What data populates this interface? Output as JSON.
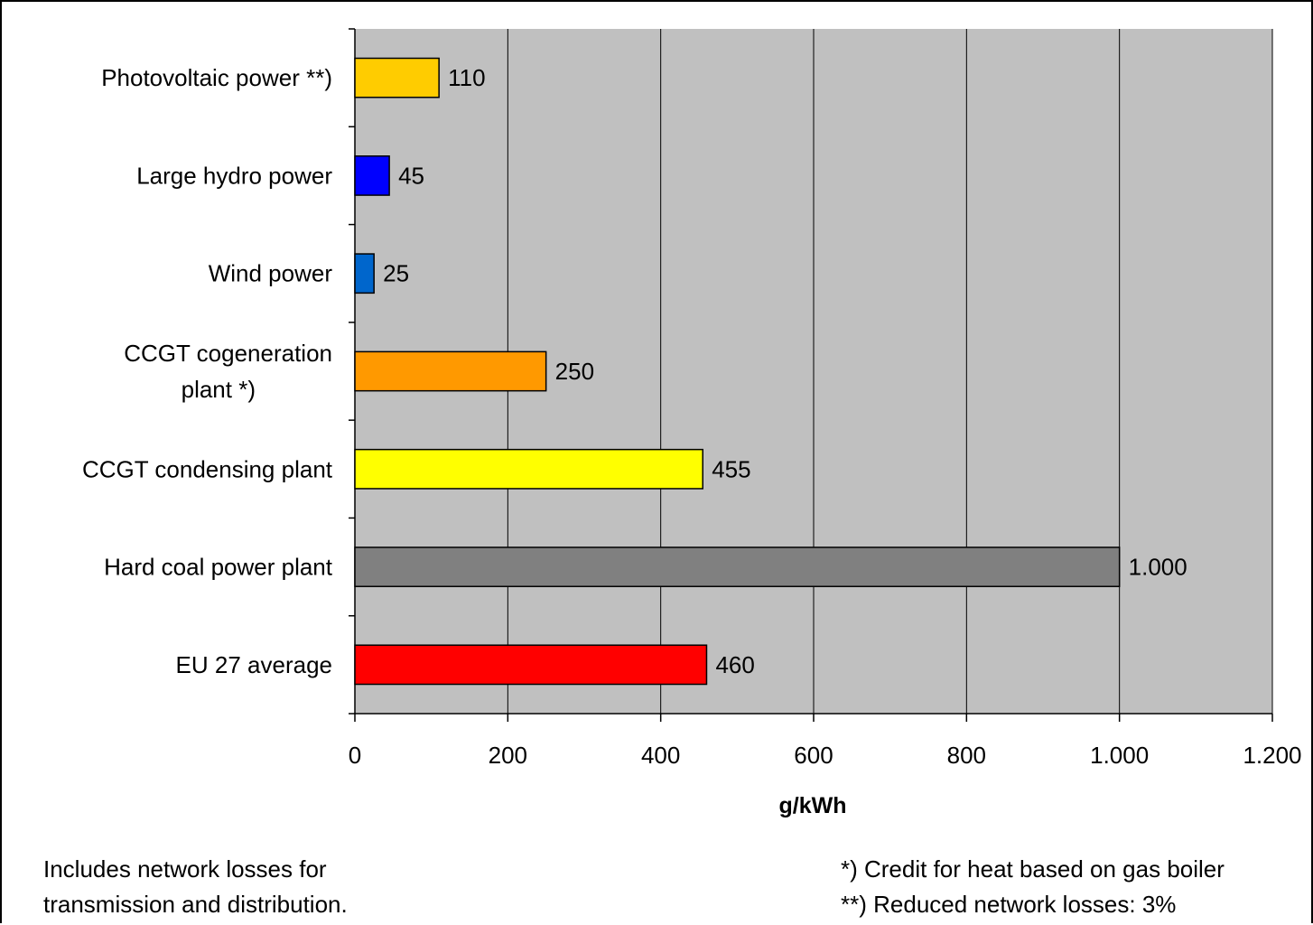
{
  "colors": {
    "plot_background": "#c0c0c0",
    "gridline": "#000000",
    "frame": "#000000"
  },
  "chart_data": {
    "type": "bar",
    "orientation": "horizontal",
    "categories": [
      "Photovoltaic power **)",
      "Large hydro power",
      "Wind power",
      "CCGT cogeneration plant *)",
      "CCGT condensing plant",
      "Hard coal power plant",
      "EU 27 average"
    ],
    "category_label_lines": [
      [
        "Photovoltaic power **)"
      ],
      [
        "Large hydro power"
      ],
      [
        "Wind power"
      ],
      [
        "CCGT cogeneration",
        "plant *)"
      ],
      [
        "CCGT condensing plant"
      ],
      [
        "Hard coal power plant"
      ],
      [
        "EU 27 average"
      ]
    ],
    "values": [
      110,
      45,
      25,
      250,
      455,
      1000,
      460
    ],
    "data_labels": [
      "110",
      "45",
      "25",
      "250",
      "455",
      "1.000",
      "460"
    ],
    "bar_colors": [
      "#ffcc00",
      "#0000ff",
      "#0066cc",
      "#ff9900",
      "#ffff00",
      "#808080",
      "#ff0000"
    ],
    "xlabel": "g/kWh",
    "xlim": [
      0,
      1200
    ],
    "xticks": [
      0,
      200,
      400,
      600,
      800,
      1000,
      1200
    ],
    "xtick_labels": [
      "0",
      "200",
      "400",
      "600",
      "800",
      "1.000",
      "1.200"
    ],
    "grid": true,
    "legend": "none"
  },
  "notes": {
    "left_line1": "Includes network losses for",
    "left_line2": "transmission and distribution.",
    "right_line1": "*) Credit for heat based on gas boiler",
    "right_line2": "**) Reduced network losses: 3%"
  }
}
